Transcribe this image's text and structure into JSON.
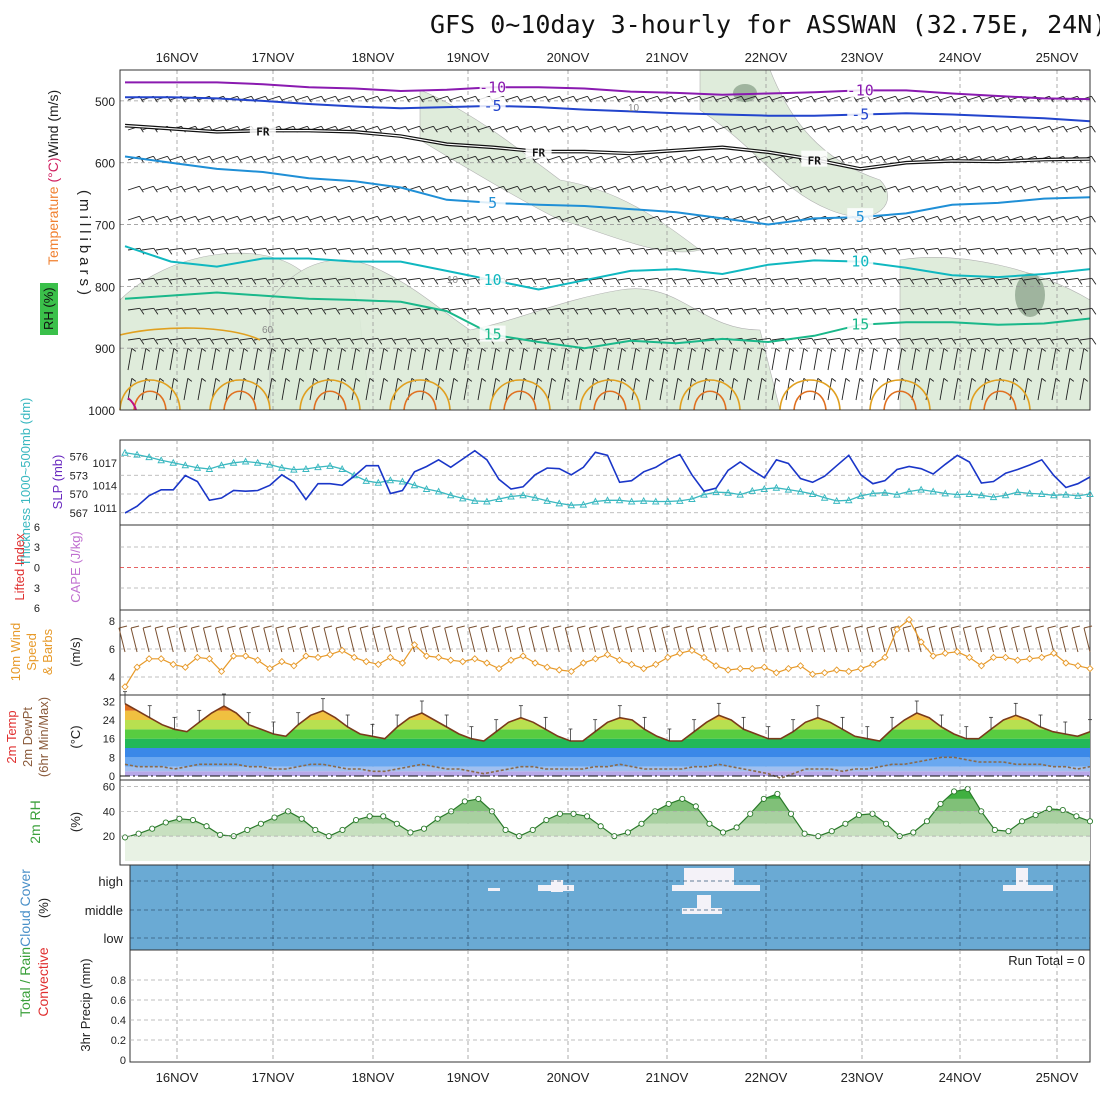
{
  "title": "GFS 0~10day 3-hourly for ASSWAN (32.75E, 24N)",
  "colors": {
    "temp_purple": "#8a1ab0",
    "temp_blue": "#2244cc",
    "temp_lightblue": "#1f8fd6",
    "temp_cyan": "#10b8c0",
    "temp_green": "#1ab88a",
    "temp_orange": "#e0a020",
    "rh_fill": "#dcebd8",
    "slp": "#1a36c8",
    "thickness": "#3ab8c0",
    "wind10": "#e79a2a",
    "temp2m_line": "#7a3a1a",
    "dew2m": "#8a6a4a",
    "rh2m": "#3aa03a",
    "cloud_bg": "#6aaad4",
    "cloud_cover": "#f4f2f8",
    "lifted": "#e03030"
  },
  "chart_data": [
    {
      "panel": "upper-air",
      "type": "line",
      "x": [
        "16NOV",
        "17NOV",
        "18NOV",
        "19NOV",
        "20NOV",
        "21NOV",
        "22NOV",
        "23NOV",
        "24NOV",
        "25NOV"
      ],
      "ylabel": "(millibars)",
      "ylim": [
        1000,
        450
      ],
      "yticks": [
        500,
        600,
        700,
        800,
        900,
        1000
      ],
      "legend_labels": [
        "RH (%)",
        "Temperature (°C)",
        "Wind (m/s)"
      ],
      "isotherms": [
        {
          "label": "-10",
          "color": "#8a1ab0",
          "pressure": [
            470,
            470,
            470,
            473,
            478,
            480,
            484,
            482,
            478,
            478,
            480,
            485,
            487,
            490,
            488,
            486,
            483,
            483,
            488,
            492,
            496,
            497
          ]
        },
        {
          "label": "-5",
          "color": "#2244cc",
          "pressure": [
            494,
            494,
            496,
            500,
            505,
            509,
            512,
            510,
            508,
            510,
            514,
            517,
            520,
            522,
            524,
            524,
            522,
            520,
            522,
            525,
            528,
            533
          ]
        },
        {
          "label": "FR",
          "color": "#111111",
          "pressure": [
            540,
            545,
            550,
            548,
            548,
            550,
            557,
            570,
            575,
            582,
            582,
            585,
            580,
            575,
            583,
            595,
            610,
            600,
            597,
            598,
            595,
            594
          ]
        },
        {
          "label": "5",
          "color": "#1f8fd6",
          "pressure": [
            590,
            600,
            610,
            615,
            625,
            630,
            640,
            660,
            665,
            668,
            670,
            675,
            680,
            690,
            700,
            690,
            688,
            682,
            668,
            665,
            658,
            656
          ]
        },
        {
          "label": "10",
          "color": "#10b8c0",
          "pressure": [
            735,
            760,
            768,
            755,
            755,
            760,
            760,
            775,
            790,
            805,
            790,
            775,
            772,
            780,
            765,
            758,
            760,
            770,
            782,
            785,
            780,
            772
          ]
        },
        {
          "label": "15",
          "color": "#1ab88a",
          "pressure": [
            820,
            815,
            810,
            815,
            820,
            822,
            825,
            840,
            878,
            890,
            900,
            888,
            892,
            885,
            890,
            880,
            862,
            858,
            858,
            862,
            860,
            852
          ]
        }
      ],
      "rh_contour_labels": [
        "10",
        "10",
        "60"
      ]
    },
    {
      "panel": "slp-thickness",
      "type": "line",
      "ylabels": [
        "Thickness 1000~500mb (dm)",
        "SLP (mb)"
      ],
      "yticks_left": [
        567,
        570,
        573,
        576
      ],
      "yticks_right": [
        1011,
        1014,
        1017
      ],
      "series": [
        {
          "name": "SLP (mb)",
          "color": "#1a36c8",
          "values": [
            1010.3,
            1011.2,
            1012.6,
            1013.4,
            1013.4,
            1015.3,
            1014.5,
            1012.0,
            1012.3,
            1013.3,
            1013.2,
            1013.3,
            1014.0,
            1015.4,
            1014.4,
            1012.1,
            1014.2,
            1014.2,
            1014.0,
            1015.2,
            1016.6,
            1016.6,
            1012.9,
            1013.3,
            1015.8,
            1016.5,
            1017.4,
            1016.4,
            1017.5,
            1018.6,
            1017.4,
            1014.8,
            1013.5,
            1013.8,
            1015.4,
            1016.3,
            1016.2,
            1015.4,
            1016.4,
            1018.4,
            1018.0,
            1014.4,
            1014.6,
            1015.8,
            1016.4,
            1017.4,
            1018.1,
            1015.4,
            1013.2,
            1013.6,
            1016.0,
            1017.1,
            1016.0,
            1015.0,
            1017.4,
            1016.9,
            1014.9,
            1014.4,
            1015.2,
            1016.6,
            1018.0,
            1015.4,
            1014.2,
            1014.6,
            1016.1,
            1016.5,
            1016.2,
            1015.5,
            1016.8,
            1018.0,
            1017.1,
            1014.3,
            1014.5,
            1015.6,
            1016.1,
            1016.7,
            1017.4,
            1015.3,
            1013.7,
            1014.2,
            1015.1
          ]
        },
        {
          "name": "Thickness 1000~500mb (dm)",
          "color": "#3ab8c0",
          "values": [
            576.6,
            576.3,
            575.9,
            575.4,
            575.0,
            574.6,
            574.2,
            574.0,
            574.6,
            575.0,
            575.2,
            575.0,
            574.7,
            574.2,
            573.9,
            574.0,
            574.3,
            574.5,
            574.0,
            573.0,
            572.1,
            571.8,
            572.2,
            572.0,
            571.4,
            570.8,
            570.4,
            569.8,
            569.3,
            568.9,
            568.8,
            569.2,
            569.6,
            569.8,
            569.4,
            568.9,
            568.5,
            568.2,
            568.3,
            568.8,
            569.0,
            569.0,
            568.8,
            568.9,
            568.8,
            568.8,
            568.9,
            569.2,
            569.9,
            570.3,
            570.2,
            569.9,
            570.5,
            570.8,
            571.0,
            570.7,
            570.4,
            570.0,
            569.4,
            568.9,
            569.0,
            569.7,
            570.1,
            570.2,
            569.9,
            570.4,
            570.7,
            570.4,
            570.1,
            569.9,
            570.0,
            569.8,
            569.5,
            569.8,
            570.3,
            570.1,
            570.0,
            569.8,
            569.9,
            569.7,
            570.0
          ]
        }
      ]
    },
    {
      "panel": "instability",
      "type": "line",
      "ylabels": [
        "Lifted Index",
        "CAPE (J/kg)"
      ],
      "yticks": [
        "6",
        "3",
        "0",
        "3",
        "6"
      ],
      "series": [
        {
          "name": "Lifted Index",
          "values": []
        },
        {
          "name": "CAPE (J/kg)",
          "values": []
        }
      ]
    },
    {
      "panel": "10m-wind",
      "type": "line",
      "ylabels": [
        "10m Wind Speed & Barbs",
        "(m/s)"
      ],
      "yticks": [
        4,
        6,
        8
      ],
      "ylim": [
        3,
        8.5
      ],
      "series": [
        {
          "name": "10m Wind Speed",
          "values": [
            3.3,
            4.7,
            5.3,
            5.3,
            4.9,
            4.7,
            5.4,
            5.3,
            4.4,
            5.5,
            5.5,
            5.2,
            4.6,
            5.1,
            4.8,
            5.5,
            5.4,
            5.6,
            5.9,
            5.4,
            5.1,
            4.9,
            5.4,
            5.0,
            6.3,
            5.5,
            5.4,
            5.2,
            5.1,
            5.3,
            5.0,
            4.6,
            5.2,
            5.5,
            5.0,
            4.7,
            4.5,
            4.4,
            5.0,
            5.3,
            5.6,
            5.2,
            4.9,
            4.6,
            4.9,
            5.4,
            5.7,
            5.9,
            5.4,
            4.8,
            4.5,
            4.6,
            4.6,
            4.7,
            4.3,
            4.6,
            4.8,
            4.2,
            4.3,
            4.5,
            4.4,
            4.6,
            4.9,
            5.4,
            7.4,
            8.1,
            6.5,
            5.5,
            5.7,
            5.8,
            5.4,
            4.8,
            5.4,
            5.4,
            5.2,
            5.3,
            5.4,
            5.7,
            5.0,
            4.8,
            4.6
          ]
        }
      ]
    },
    {
      "panel": "2m-temp",
      "type": "area",
      "ylabels": [
        "2m Temp",
        "2m DewPt",
        "(6hr Min/Max)",
        "(°C)"
      ],
      "yticks": [
        0,
        8,
        16,
        24,
        32
      ],
      "ylim": [
        0,
        33
      ],
      "series": [
        {
          "name": "2m Temp",
          "values": [
            31,
            28,
            25,
            22,
            20,
            19,
            23,
            27,
            30,
            27,
            22,
            20,
            18,
            17,
            22,
            26,
            28,
            25,
            21,
            18,
            17,
            16,
            21,
            25,
            27,
            24,
            21,
            18,
            16,
            15,
            19,
            23,
            25,
            23,
            20,
            17,
            15,
            15,
            19,
            23,
            25,
            24,
            20,
            17,
            15,
            15,
            19,
            23,
            26,
            24,
            20,
            18,
            16,
            16,
            19,
            23,
            25,
            23,
            20,
            17,
            16,
            15,
            20,
            24,
            27,
            25,
            21,
            18,
            16,
            16,
            20,
            24,
            26,
            24,
            21,
            19,
            18,
            17,
            19
          ]
        },
        {
          "name": "2m DewPt",
          "values": [
            5,
            4,
            4,
            4,
            3,
            4,
            5,
            5,
            5,
            5,
            4,
            4,
            3,
            3,
            4,
            5,
            5,
            4,
            3,
            3,
            2,
            2,
            3,
            4,
            5,
            4,
            3,
            3,
            2,
            1,
            2,
            3,
            4,
            4,
            3,
            3,
            3,
            3,
            4,
            4,
            5,
            4,
            3,
            3,
            3,
            3,
            4,
            4,
            5,
            4,
            3,
            2,
            1,
            -1,
            1,
            3,
            3,
            3,
            2,
            3,
            3,
            4,
            5,
            5,
            6,
            7,
            8,
            8,
            7,
            6,
            6,
            6,
            5,
            5,
            5,
            4,
            4,
            3,
            4
          ]
        }
      ]
    },
    {
      "panel": "2m-rh",
      "type": "area",
      "ylabels": [
        "2m RH",
        "(%)"
      ],
      "yticks": [
        20,
        40,
        60
      ],
      "ylim": [
        0,
        62
      ],
      "series": [
        {
          "name": "2m RH",
          "values": [
            19,
            22,
            26,
            31,
            34,
            33,
            28,
            21,
            20,
            25,
            30,
            35,
            40,
            34,
            25,
            20,
            25,
            33,
            36,
            36,
            30,
            23,
            26,
            34,
            40,
            48,
            50,
            40,
            25,
            20,
            25,
            33,
            38,
            38,
            36,
            28,
            20,
            23,
            30,
            40,
            46,
            50,
            44,
            30,
            23,
            27,
            38,
            50,
            54,
            38,
            22,
            20,
            24,
            30,
            37,
            38,
            30,
            20,
            23,
            32,
            46,
            56,
            58,
            40,
            25,
            24,
            32,
            37,
            42,
            41,
            36,
            32
          ]
        }
      ]
    },
    {
      "panel": "cloud-cover",
      "type": "heatmap",
      "ylabels": [
        "Cloud Cover",
        "(%)"
      ],
      "yticks": [
        "high",
        "middle",
        "low"
      ],
      "series": [
        {
          "name": "Cloud Cover",
          "values": []
        }
      ]
    },
    {
      "panel": "3hr-precip",
      "type": "bar",
      "ylabels": [
        "Total / Rain",
        "Convective",
        "3hr Precip (mm)"
      ],
      "yticks": [
        0,
        0.2,
        0.4,
        0.6,
        0.8
      ],
      "ylim": [
        0,
        1.0
      ],
      "annotation": "Run Total = 0",
      "series": [
        {
          "name": "3hr Precip",
          "values": []
        }
      ]
    }
  ]
}
